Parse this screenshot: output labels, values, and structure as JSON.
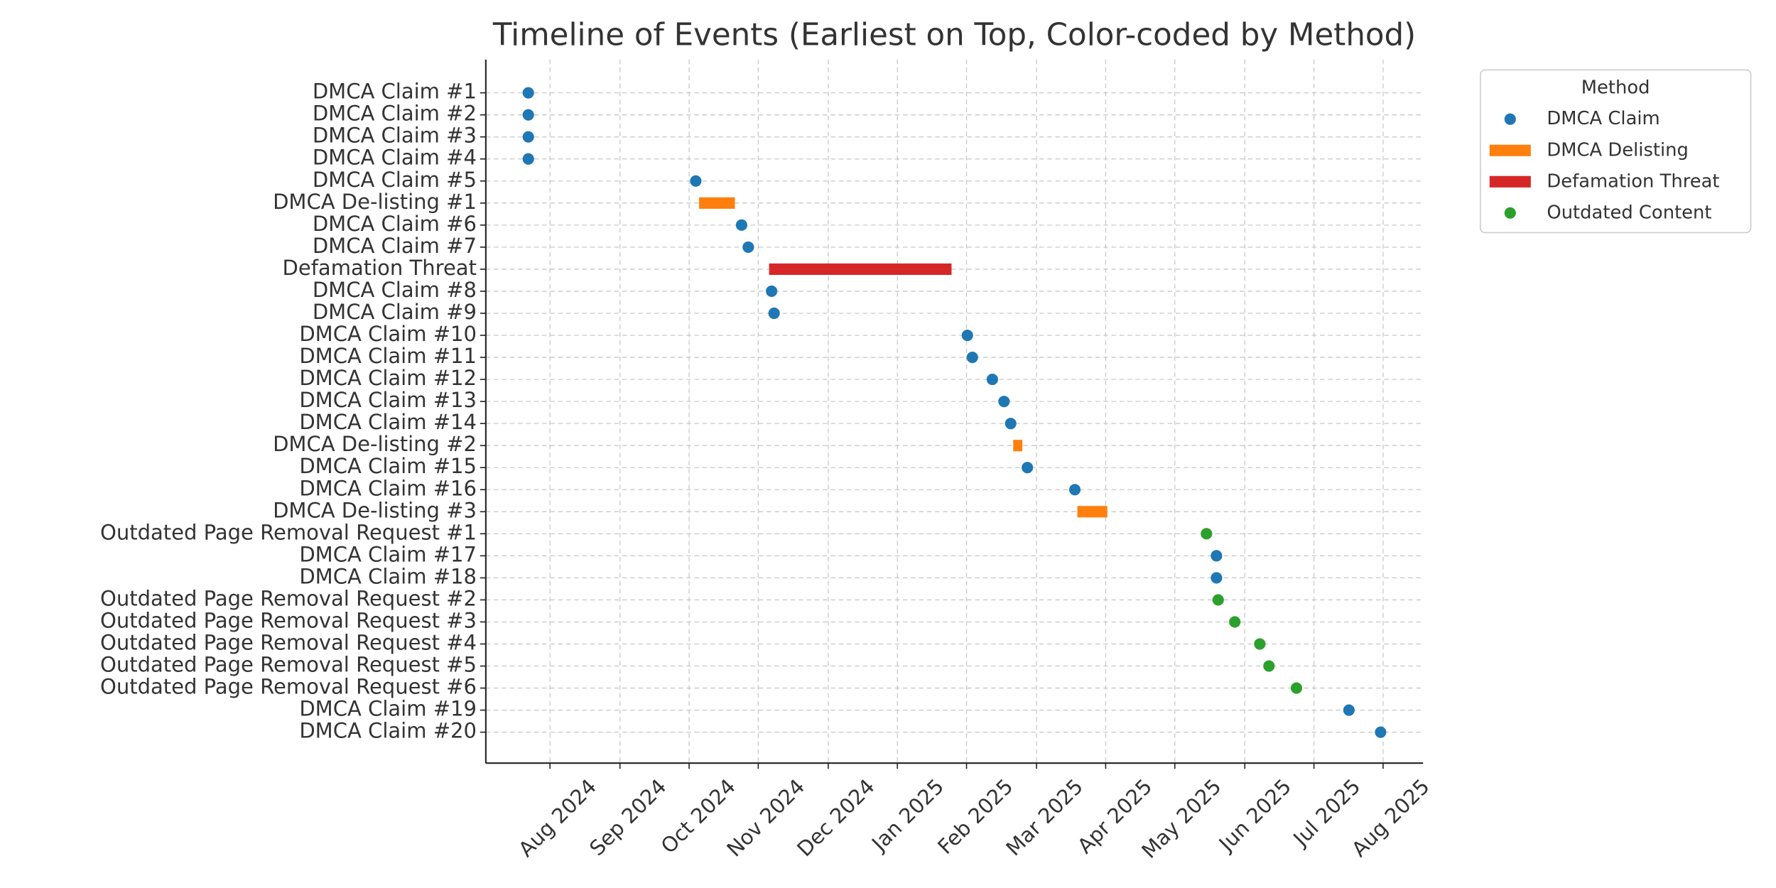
{
  "chart_data": {
    "type": "timeline",
    "title": "Timeline of Events (Earliest on Top, Color-coded by Method)",
    "categories": [
      "DMCA Claim #1",
      "DMCA Claim #2",
      "DMCA Claim #3",
      "DMCA Claim #4",
      "DMCA Claim #5",
      "DMCA De-listing #1",
      "DMCA Claim #6",
      "DMCA Claim #7",
      "Defamation Threat",
      "DMCA Claim #8",
      "DMCA Claim #9",
      "DMCA Claim #10",
      "DMCA Claim #11",
      "DMCA Claim #12",
      "DMCA Claim #13",
      "DMCA Claim #14",
      "DMCA De-listing #2",
      "DMCA Claim #15",
      "DMCA Claim #16",
      "DMCA De-listing #3",
      "Outdated Page Removal Request #1",
      "DMCA Claim #17",
      "DMCA Claim #18",
      "Outdated Page Removal Request #2",
      "Outdated Page Removal Request #3",
      "Outdated Page Removal Request #4",
      "Outdated Page Removal Request #5",
      "Outdated Page Removal Request #6",
      "DMCA Claim #19",
      "DMCA Claim #20"
    ],
    "series": [
      {
        "name": "DMCA Claim",
        "color": "#1f77b4",
        "marker": "point",
        "values": [
          2024.557,
          2024.557,
          2024.557,
          2024.557,
          2024.758,
          null,
          2024.813,
          2024.821,
          null,
          2024.849,
          2024.852,
          2025.084,
          2025.09,
          2025.114,
          2025.128,
          2025.136,
          null,
          2025.156,
          2025.213,
          null,
          null,
          2025.383,
          2025.383,
          null,
          null,
          null,
          null,
          null,
          2025.542,
          2025.58
        ]
      },
      {
        "name": "DMCA Delisting",
        "color": "#ff7f0e",
        "marker": "bar",
        "start": [
          null,
          null,
          null,
          null,
          null,
          2024.762,
          null,
          null,
          null,
          null,
          null,
          null,
          null,
          null,
          null,
          null,
          2025.139,
          null,
          null,
          2025.216,
          null,
          null,
          null,
          null,
          null,
          null,
          null,
          null,
          null,
          null
        ],
        "end": [
          null,
          null,
          null,
          null,
          null,
          2024.805,
          null,
          null,
          null,
          null,
          null,
          null,
          null,
          null,
          null,
          null,
          2025.15,
          null,
          null,
          2025.252,
          null,
          null,
          null,
          null,
          null,
          null,
          null,
          null,
          null,
          null
        ]
      },
      {
        "name": "Defamation Threat",
        "color": "#d62728",
        "marker": "bar",
        "start": [
          null,
          null,
          null,
          null,
          null,
          null,
          null,
          null,
          2024.846,
          null,
          null,
          null,
          null,
          null,
          null,
          null,
          null,
          null,
          null,
          null,
          null,
          null,
          null,
          null,
          null,
          null,
          null,
          null,
          null,
          null
        ],
        "end": [
          null,
          null,
          null,
          null,
          null,
          null,
          null,
          null,
          2025.065,
          null,
          null,
          null,
          null,
          null,
          null,
          null,
          null,
          null,
          null,
          null,
          null,
          null,
          null,
          null,
          null,
          null,
          null,
          null,
          null,
          null
        ]
      },
      {
        "name": "Outdated Content",
        "color": "#2ca02c",
        "marker": "point",
        "values": [
          null,
          null,
          null,
          null,
          null,
          null,
          null,
          null,
          null,
          null,
          null,
          null,
          null,
          null,
          null,
          null,
          null,
          null,
          null,
          null,
          2025.371,
          null,
          null,
          2025.385,
          2025.405,
          2025.435,
          2025.446,
          2025.479,
          null,
          null
        ]
      }
    ],
    "xlim": [
      2024.506,
      2025.631
    ],
    "xticks": [
      {
        "value": 2024.583,
        "label": "Aug 2024"
      },
      {
        "value": 2024.667,
        "label": "Sep 2024"
      },
      {
        "value": 2024.75,
        "label": "Oct 2024"
      },
      {
        "value": 2024.833,
        "label": "Nov 2024"
      },
      {
        "value": 2024.917,
        "label": "Dec 2024"
      },
      {
        "value": 2025.0,
        "label": "Jan 2025"
      },
      {
        "value": 2025.083,
        "label": "Feb 2025"
      },
      {
        "value": 2025.167,
        "label": "Mar 2025"
      },
      {
        "value": 2025.25,
        "label": "Apr 2025"
      },
      {
        "value": 2025.333,
        "label": "May 2025"
      },
      {
        "value": 2025.417,
        "label": "Jun 2025"
      },
      {
        "value": 2025.5,
        "label": "Jul 2025"
      },
      {
        "value": 2025.583,
        "label": "Aug 2025"
      }
    ],
    "grid": true,
    "legend_title": "Method",
    "legend": "outside"
  }
}
